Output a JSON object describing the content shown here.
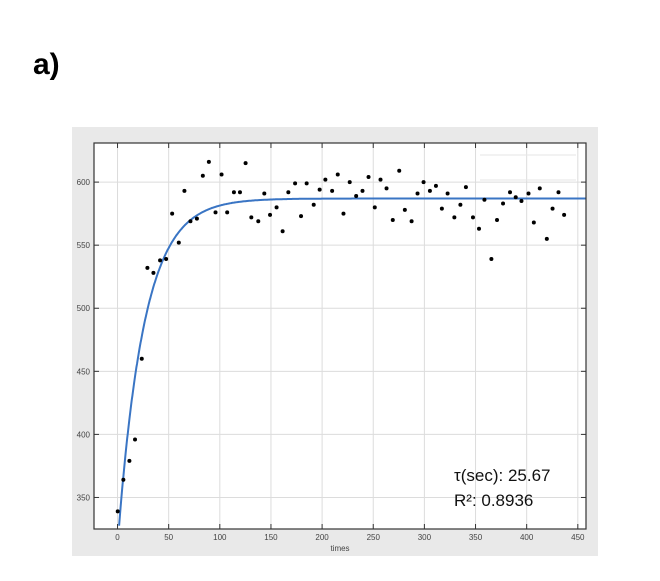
{
  "panel_label": "a)",
  "chart_data": {
    "type": "scatter",
    "title": "",
    "xlabel": "times",
    "ylabel": "",
    "xlim": [
      -23,
      458
    ],
    "ylim": [
      325,
      631
    ],
    "xticks": [
      0,
      50,
      100,
      150,
      200,
      250,
      300,
      350,
      400,
      450
    ],
    "yticks": [
      350,
      400,
      450,
      500,
      550,
      600
    ],
    "grid": true,
    "colors": {
      "points": "#000000",
      "fit": "#3a75c4",
      "background": "#e9e9e9"
    },
    "points": {
      "x": [
        0.2,
        5.7,
        11.6,
        17.1,
        23.7,
        29.2,
        35.1,
        41.6,
        47.5,
        53.4,
        59.9,
        65.4,
        71.3,
        77.6,
        83.4,
        89.3,
        95.8,
        101.7,
        107.2,
        113.8,
        119.7,
        125.2,
        130.8,
        137.6,
        143.5,
        149.1,
        155.5,
        161.4,
        167.0,
        173.6,
        179.4,
        184.9,
        191.8,
        197.6,
        203.2,
        209.8,
        215.3,
        220.9,
        227.0,
        233.3,
        239.5,
        245.4,
        251.5,
        257.1,
        263.0,
        269.1,
        275.4,
        280.9,
        287.5,
        293.3,
        299.2,
        305.4,
        311.3,
        317.1,
        322.7,
        329.3,
        335.2,
        340.6,
        347.5,
        353.4,
        358.7,
        365.5,
        371.0,
        376.9,
        383.7,
        389.3,
        394.9,
        401.8,
        407.0,
        412.8,
        419.7,
        425.3,
        431.1,
        436.6
      ],
      "y": [
        339,
        364,
        379,
        396,
        460,
        532,
        528,
        538,
        539,
        575,
        552,
        593,
        569,
        571,
        605,
        616,
        576,
        606,
        576,
        592,
        592,
        615,
        572,
        569,
        591,
        574,
        580,
        561,
        592,
        599,
        573,
        599,
        582,
        594,
        602,
        593,
        606,
        575,
        600,
        589,
        593,
        604,
        580,
        602,
        595,
        570,
        609,
        578,
        569,
        591,
        600,
        593,
        597,
        579,
        591,
        572,
        582,
        596,
        572,
        563,
        586,
        539,
        570,
        583,
        592,
        588,
        585,
        591,
        568,
        595,
        555,
        579,
        592,
        574
      ]
    },
    "fit": {
      "model": "y = A - B*exp(-t/tau)",
      "A": 587,
      "B": 275,
      "tau": 25.67
    },
    "annotations": [
      "τ(sec): 25.67",
      "R²: 0.8936"
    ]
  }
}
